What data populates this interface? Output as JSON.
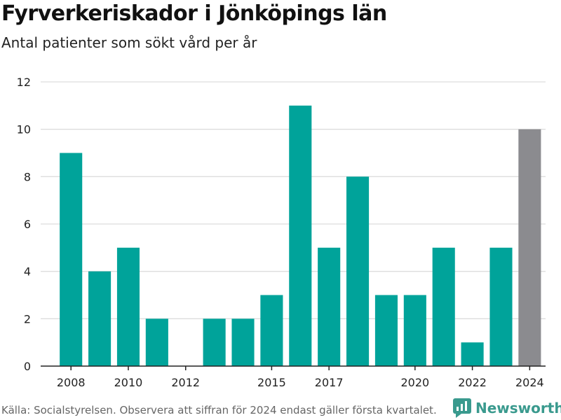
{
  "title": "Fyrverkeriskador i Jönköpings län",
  "subtitle": "Antal patienter som sökt vård per år",
  "source": "Källa: Socialstyrelsen. Observera att siffran för 2024 endast gäller första kvartalet.",
  "brand": {
    "name": "Newsworthy",
    "icon": "newsworthy-logo-icon",
    "color": "#3a9a8e"
  },
  "colors": {
    "bar": "#00a39a",
    "highlight": "#8b8b8f",
    "grid": "#dddddd",
    "axis": "#222222"
  },
  "chart_data": {
    "type": "bar",
    "x": [
      2008,
      2009,
      2010,
      2011,
      2012,
      2013,
      2014,
      2015,
      2016,
      2017,
      2018,
      2019,
      2020,
      2021,
      2022,
      2023,
      2024
    ],
    "values": [
      9,
      4,
      5,
      2,
      0,
      2,
      2,
      3,
      11,
      5,
      8,
      3,
      3,
      5,
      1,
      5,
      10
    ],
    "highlight_x": [
      2024
    ],
    "xticks": [
      "2008",
      "2010",
      "2012",
      "2015",
      "2017",
      "2020",
      "2022",
      "2024"
    ],
    "yticks": [
      "0",
      "2",
      "4",
      "6",
      "8",
      "10",
      "12"
    ],
    "ylim": [
      0,
      12
    ],
    "grid": true
  }
}
